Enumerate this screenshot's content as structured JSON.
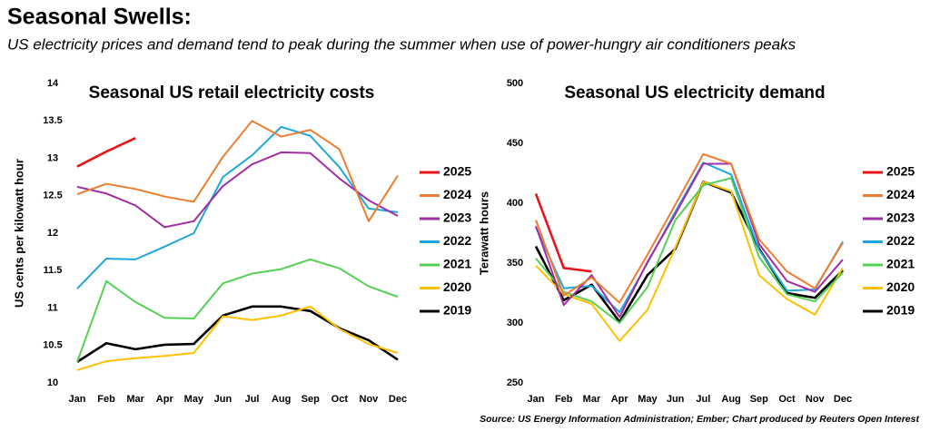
{
  "title": "Seasonal Swells:",
  "subtitle": "US electricity prices and demand tend to peak during the summer when use of power-hungry air conditioners peaks",
  "source": "Source: US Energy Information Administration; Ember; Chart produced by Reuters Open Interest",
  "chart_data": [
    {
      "type": "line",
      "title": "Seasonal US retail electricity costs",
      "y_label": "US cents per kilowatt hour",
      "categories": [
        "Jan",
        "Feb",
        "Mar",
        "Apr",
        "May",
        "Jun",
        "Jul",
        "Aug",
        "Sep",
        "Oct",
        "Nov",
        "Dec"
      ],
      "ylim": [
        10,
        14
      ],
      "yticks": [
        10,
        10.5,
        11,
        11.5,
        12,
        12.5,
        13,
        13.5,
        14
      ],
      "grid": false,
      "legend": "right",
      "series": [
        {
          "name": "2025",
          "color": "#e8141c",
          "values": [
            12.89,
            13.09,
            13.27,
            null,
            null,
            null,
            null,
            null,
            null,
            null,
            null,
            null
          ]
        },
        {
          "name": "2024",
          "color": "#ed7d31",
          "values": [
            12.52,
            12.66,
            12.59,
            12.49,
            12.42,
            13.02,
            13.5,
            13.29,
            13.38,
            13.12,
            12.16,
            12.77
          ]
        },
        {
          "name": "2023",
          "color": "#a02fa3",
          "values": [
            12.62,
            12.53,
            12.37,
            12.08,
            12.16,
            12.63,
            12.92,
            13.08,
            13.07,
            12.73,
            12.44,
            12.23
          ]
        },
        {
          "name": "2022",
          "color": "#1ea7de",
          "values": [
            11.26,
            11.66,
            11.65,
            11.82,
            12.0,
            12.75,
            13.04,
            13.42,
            13.3,
            12.88,
            12.33,
            12.28
          ]
        },
        {
          "name": "2021",
          "color": "#55d055",
          "values": [
            10.28,
            11.36,
            11.08,
            10.87,
            10.86,
            11.33,
            11.46,
            11.52,
            11.65,
            11.53,
            11.29,
            11.15
          ]
        },
        {
          "name": "2020",
          "color": "#ffc000",
          "values": [
            10.17,
            10.29,
            10.33,
            10.36,
            10.4,
            10.89,
            10.84,
            10.9,
            11.02,
            10.72,
            10.52,
            10.4
          ]
        },
        {
          "name": "2019",
          "color": "#000000",
          "values": [
            10.28,
            10.53,
            10.45,
            10.51,
            10.52,
            10.9,
            11.02,
            11.02,
            10.96,
            10.73,
            10.57,
            10.31
          ]
        }
      ]
    },
    {
      "type": "line",
      "title": "Seasonal US electricity demand",
      "y_label": "Terawatt hours",
      "categories": [
        "Jan",
        "Feb",
        "Mar",
        "Apr",
        "May",
        "Jun",
        "Jul",
        "Aug",
        "Sep",
        "Oct",
        "Nov",
        "Dec"
      ],
      "ylim": [
        250,
        500
      ],
      "yticks": [
        250,
        300,
        350,
        400,
        450,
        500
      ],
      "grid": false,
      "legend": "right",
      "series": [
        {
          "name": "2025",
          "color": "#e8141c",
          "values": [
            408,
            346,
            343,
            null,
            null,
            null,
            null,
            null,
            null,
            null,
            null,
            null
          ]
        },
        {
          "name": "2024",
          "color": "#ed7d31",
          "values": [
            386,
            323,
            338,
            317,
            357,
            399,
            441,
            433,
            370,
            343,
            329,
            367
          ]
        },
        {
          "name": "2023",
          "color": "#a02fa3",
          "values": [
            381,
            315,
            340,
            305,
            351,
            391,
            433,
            433,
            366,
            335,
            326,
            353
          ]
        },
        {
          "name": "2022",
          "color": "#1ea7de",
          "values": [
            380,
            329,
            331,
            309,
            350,
            393,
            434,
            424,
            361,
            327,
            328,
            368
          ]
        },
        {
          "name": "2021",
          "color": "#55d055",
          "values": [
            354,
            326,
            318,
            300,
            330,
            386,
            415,
            421,
            355,
            324,
            318,
            342
          ]
        },
        {
          "name": "2020",
          "color": "#ffc000",
          "values": [
            348,
            324,
            316,
            285,
            311,
            363,
            418,
            410,
            340,
            320,
            307,
            346
          ]
        },
        {
          "name": "2019",
          "color": "#000000",
          "values": [
            364,
            319,
            332,
            301,
            340,
            362,
            418,
            409,
            362,
            325,
            321,
            344
          ]
        }
      ]
    }
  ]
}
